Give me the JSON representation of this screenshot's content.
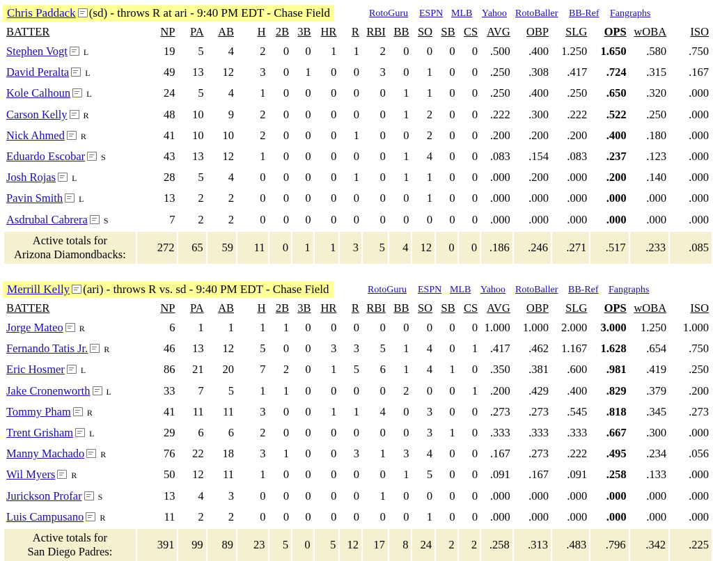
{
  "sections": [
    {
      "pitcher": "Chris Paddack",
      "matchup": "(sd) - throws R at ari - 9:40 PM EDT - Chase Field",
      "links": [
        "RotoGuru",
        "ESPN",
        "MLB",
        "Yahoo",
        "RotoBaller",
        "BB-Ref",
        "Fangraphs"
      ],
      "columns": [
        "BATTER",
        "NP",
        "PA",
        "AB",
        "H",
        "2B",
        "3B",
        "HR",
        "R",
        "RBI",
        "BB",
        "SO",
        "SB",
        "CS",
        "AVG",
        "OBP",
        "SLG",
        "OPS",
        "wOBA",
        "ISO"
      ],
      "rows": [
        {
          "name": "Stephen Vogt",
          "hand": "L",
          "stats": [
            "19",
            "5",
            "4",
            "2",
            "0",
            "0",
            "1",
            "1",
            "2",
            "0",
            "0",
            "0",
            "0",
            ".500",
            ".400",
            "1.250",
            "1.650",
            ".580",
            ".750"
          ]
        },
        {
          "name": "David Peralta",
          "hand": "L",
          "stats": [
            "49",
            "13",
            "12",
            "3",
            "0",
            "1",
            "0",
            "0",
            "3",
            "0",
            "1",
            "0",
            "0",
            ".250",
            ".308",
            ".417",
            ".724",
            ".315",
            ".167"
          ]
        },
        {
          "name": "Kole Calhoun",
          "hand": "L",
          "stats": [
            "24",
            "5",
            "4",
            "1",
            "0",
            "0",
            "0",
            "0",
            "0",
            "1",
            "1",
            "0",
            "0",
            ".250",
            ".400",
            ".250",
            ".650",
            ".320",
            ".000"
          ]
        },
        {
          "name": "Carson Kelly",
          "hand": "R",
          "stats": [
            "48",
            "10",
            "9",
            "2",
            "0",
            "0",
            "0",
            "0",
            "0",
            "1",
            "2",
            "0",
            "0",
            ".222",
            ".300",
            ".222",
            ".522",
            ".250",
            ".000"
          ]
        },
        {
          "name": "Nick Ahmed",
          "hand": "R",
          "stats": [
            "41",
            "10",
            "10",
            "2",
            "0",
            "0",
            "0",
            "1",
            "0",
            "0",
            "2",
            "0",
            "0",
            ".200",
            ".200",
            ".200",
            ".400",
            ".180",
            ".000"
          ]
        },
        {
          "name": "Eduardo Escobar",
          "hand": "S",
          "stats": [
            "43",
            "13",
            "12",
            "1",
            "0",
            "0",
            "0",
            "0",
            "0",
            "1",
            "4",
            "0",
            "0",
            ".083",
            ".154",
            ".083",
            ".237",
            ".123",
            ".000"
          ]
        },
        {
          "name": "Josh Rojas",
          "hand": "L",
          "stats": [
            "28",
            "5",
            "4",
            "0",
            "0",
            "0",
            "0",
            "1",
            "0",
            "1",
            "1",
            "0",
            "0",
            ".000",
            ".200",
            ".000",
            ".200",
            ".140",
            ".000"
          ]
        },
        {
          "name": "Pavin Smith",
          "hand": "L",
          "stats": [
            "13",
            "2",
            "2",
            "0",
            "0",
            "0",
            "0",
            "0",
            "0",
            "0",
            "1",
            "0",
            "0",
            ".000",
            ".000",
            ".000",
            ".000",
            ".000",
            ".000"
          ]
        },
        {
          "name": "Asdrubal Cabrera",
          "hand": "S",
          "stats": [
            "7",
            "2",
            "2",
            "0",
            "0",
            "0",
            "0",
            "0",
            "0",
            "0",
            "0",
            "0",
            "0",
            ".000",
            ".000",
            ".000",
            ".000",
            ".000",
            ".000"
          ]
        }
      ],
      "total_label_1": "Active totals for",
      "total_label_2": "Arizona Diamondbacks:",
      "totals": [
        "272",
        "65",
        "59",
        "11",
        "0",
        "1",
        "1",
        "3",
        "5",
        "4",
        "12",
        "0",
        "0",
        ".186",
        ".246",
        ".271",
        ".517",
        ".233",
        ".085"
      ]
    },
    {
      "pitcher": "Merrill Kelly",
      "matchup": "(ari) - throws R vs. sd - 9:40 PM EDT - Chase Field",
      "links": [
        "RotoGuru",
        "ESPN",
        "MLB",
        "Yahoo",
        "RotoBaller",
        "BB-Ref",
        "Fangraphs"
      ],
      "columns": [
        "BATTER",
        "NP",
        "PA",
        "AB",
        "H",
        "2B",
        "3B",
        "HR",
        "R",
        "RBI",
        "BB",
        "SO",
        "SB",
        "CS",
        "AVG",
        "OBP",
        "SLG",
        "OPS",
        "wOBA",
        "ISO"
      ],
      "rows": [
        {
          "name": "Jorge Mateo",
          "hand": "R",
          "stats": [
            "6",
            "1",
            "1",
            "1",
            "1",
            "0",
            "0",
            "0",
            "0",
            "0",
            "0",
            "0",
            "0",
            "1.000",
            "1.000",
            "2.000",
            "3.000",
            "1.250",
            "1.000"
          ]
        },
        {
          "name": "Fernando Tatis Jr.",
          "hand": "R",
          "stats": [
            "46",
            "13",
            "12",
            "5",
            "0",
            "0",
            "3",
            "3",
            "5",
            "1",
            "4",
            "0",
            "1",
            ".417",
            ".462",
            "1.167",
            "1.628",
            ".654",
            ".750"
          ]
        },
        {
          "name": "Eric Hosmer",
          "hand": "L",
          "stats": [
            "86",
            "21",
            "20",
            "7",
            "2",
            "0",
            "1",
            "5",
            "6",
            "1",
            "4",
            "1",
            "0",
            ".350",
            ".381",
            ".600",
            ".981",
            ".419",
            ".250"
          ]
        },
        {
          "name": "Jake Cronenworth",
          "hand": "L",
          "stats": [
            "33",
            "7",
            "5",
            "1",
            "1",
            "0",
            "0",
            "0",
            "0",
            "2",
            "0",
            "0",
            "1",
            ".200",
            ".429",
            ".400",
            ".829",
            ".379",
            ".200"
          ]
        },
        {
          "name": "Tommy Pham",
          "hand": "R",
          "stats": [
            "41",
            "11",
            "11",
            "3",
            "0",
            "0",
            "1",
            "1",
            "4",
            "0",
            "3",
            "0",
            "0",
            ".273",
            ".273",
            ".545",
            ".818",
            ".345",
            ".273"
          ]
        },
        {
          "name": "Trent Grisham",
          "hand": "L",
          "stats": [
            "29",
            "6",
            "6",
            "2",
            "0",
            "0",
            "0",
            "0",
            "0",
            "0",
            "3",
            "1",
            "0",
            ".333",
            ".333",
            ".333",
            ".667",
            ".300",
            ".000"
          ]
        },
        {
          "name": "Manny Machado",
          "hand": "R",
          "stats": [
            "76",
            "22",
            "18",
            "3",
            "1",
            "0",
            "0",
            "3",
            "1",
            "3",
            "4",
            "0",
            "0",
            ".167",
            ".273",
            ".222",
            ".495",
            ".234",
            ".056"
          ]
        },
        {
          "name": "Wil Myers",
          "hand": "R",
          "stats": [
            "50",
            "12",
            "11",
            "1",
            "0",
            "0",
            "0",
            "0",
            "0",
            "1",
            "5",
            "0",
            "0",
            ".091",
            ".167",
            ".091",
            ".258",
            ".133",
            ".000"
          ]
        },
        {
          "name": "Jurickson Profar",
          "hand": "S",
          "stats": [
            "13",
            "4",
            "3",
            "0",
            "0",
            "0",
            "0",
            "0",
            "1",
            "0",
            "0",
            "0",
            "0",
            ".000",
            ".000",
            ".000",
            ".000",
            ".000",
            ".000"
          ]
        },
        {
          "name": "Luis Campusano",
          "hand": "R",
          "stats": [
            "11",
            "2",
            "2",
            "0",
            "0",
            "0",
            "0",
            "0",
            "0",
            "0",
            "1",
            "0",
            "0",
            ".000",
            ".000",
            ".000",
            ".000",
            ".000",
            ".000"
          ]
        }
      ],
      "total_label_1": "Active totals for",
      "total_label_2": "San Diego Padres:",
      "totals": [
        "391",
        "99",
        "89",
        "23",
        "5",
        "0",
        "5",
        "12",
        "17",
        "8",
        "24",
        "2",
        "2",
        ".258",
        ".313",
        ".483",
        ".796",
        ".342",
        ".225"
      ]
    }
  ]
}
